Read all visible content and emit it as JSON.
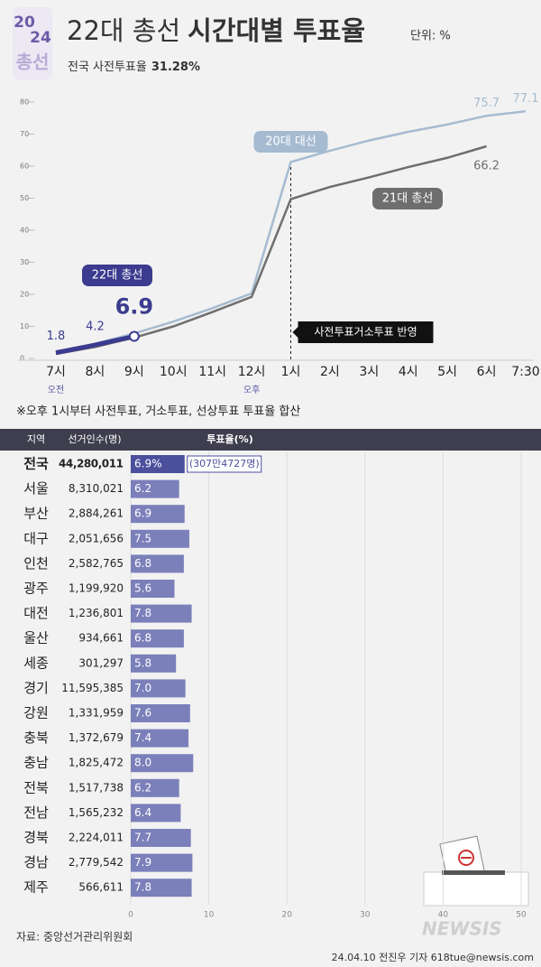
{
  "header": {
    "logo": [
      "20",
      "24",
      "총선"
    ],
    "title": [
      "22대 총선",
      "시간대별 투표율"
    ],
    "unit": "단위: %",
    "subtitle": [
      "전국 사전투표율",
      "31.28%"
    ]
  },
  "chart_data": [
    {
      "type": "line",
      "categories": [
        "7시",
        "8시",
        "9시",
        "10시",
        "11시",
        "12시",
        "1시",
        "2시",
        "3시",
        "4시",
        "5시",
        "6시",
        "7:30"
      ],
      "sublabels": [
        "오전",
        null,
        null,
        null,
        null,
        "오후",
        null,
        null,
        null,
        null,
        null,
        null,
        null
      ],
      "ylim": [
        0,
        80
      ],
      "yticks": [
        0,
        10,
        20,
        30,
        40,
        50,
        60,
        70,
        80
      ],
      "series": [
        {
          "name": "20대 대선",
          "color": "#a6bbd1",
          "values": [
            1.6,
            4.6,
            7.8,
            11.5,
            15.7,
            20.3,
            61.3,
            64.8,
            68,
            70.7,
            73,
            75.7,
            77.1
          ]
        },
        {
          "name": "21대 총선",
          "color": "#6e6e6e",
          "values": [
            1.4,
            3.6,
            6.5,
            10,
            14.5,
            19.2,
            49.7,
            53.5,
            56.5,
            59.7,
            62.6,
            66.2,
            null
          ]
        },
        {
          "name": "22대 총선",
          "color": "#3b3b8f",
          "values": [
            1.8,
            4.2,
            6.9,
            null,
            null,
            null,
            null,
            null,
            null,
            null,
            null,
            null,
            null
          ]
        }
      ],
      "annotation": "사전투표거소투표 반영",
      "footnote": "※오후 1시부터 사전투표, 거소투표, 선상투표 투표율 합산"
    },
    {
      "type": "bar",
      "columns": [
        "지역",
        "선거인수(명)",
        "투표율(%)"
      ],
      "categories": [
        "전국",
        "서울",
        "부산",
        "대구",
        "인천",
        "광주",
        "대전",
        "울산",
        "세종",
        "경기",
        "강원",
        "충북",
        "충남",
        "전북",
        "전남",
        "경북",
        "경남",
        "제주"
      ],
      "electorate": [
        "44,280,011",
        "8,310,021",
        "2,884,261",
        "2,051,656",
        "2,582,765",
        "1,199,920",
        "1,236,801",
        "934,661",
        "301,297",
        "11,595,385",
        "1,331,959",
        "1,372,679",
        "1,825,472",
        "1,517,738",
        "1,565,232",
        "2,224,011",
        "2,779,542",
        "566,611"
      ],
      "values": [
        6.9,
        6.2,
        6.9,
        7.5,
        6.8,
        5.6,
        7.8,
        6.8,
        5.8,
        7.0,
        7.6,
        7.4,
        8.0,
        6.2,
        6.4,
        7.7,
        7.9,
        7.8
      ],
      "value_labels": [
        "6.9%",
        "6.2",
        "6.9",
        "7.5",
        "6.8",
        "5.6",
        "7.8",
        "6.8",
        "5.8",
        "7.0",
        "7.6",
        "7.4",
        "8.0",
        "6.2",
        "6.4",
        "7.7",
        "7.9",
        "7.8"
      ],
      "color": "#7b80ba",
      "highlight_color": "#4b4f9c",
      "annotation": "(307만4727명)",
      "xlim": [
        0,
        50
      ],
      "xticks": [
        0,
        10,
        20,
        30,
        40,
        50
      ]
    }
  ],
  "footer": {
    "source": "자료: 중앙선거관리위원회",
    "credit": "24.04.10 전진우 기자 618tue@newsis.com",
    "watermark": "NEWSIS"
  }
}
